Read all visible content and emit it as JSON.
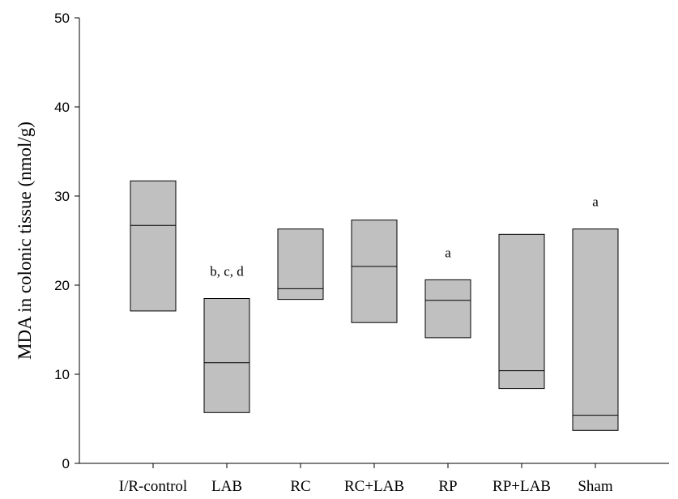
{
  "chart_data": {
    "type": "box",
    "title": "",
    "xlabel": "",
    "ylabel": "MDA in colonic tissue (nmol/g)",
    "ylim": [
      0,
      50
    ],
    "yticks": [
      0,
      10,
      20,
      30,
      40,
      50
    ],
    "grid": false,
    "fill_color": "#c0c0c0",
    "categories": [
      "I/R-control",
      "LAB",
      "RC",
      "RC+LAB",
      "RP",
      "RP+LAB",
      "Sham"
    ],
    "boxes": [
      {
        "category": "I/R-control",
        "q1": 17.1,
        "median": 26.7,
        "q3": 31.7,
        "annotation": ""
      },
      {
        "category": "LAB",
        "q1": 5.7,
        "median": 11.3,
        "q3": 18.5,
        "annotation": "b, c, d"
      },
      {
        "category": "RC",
        "q1": 18.4,
        "median": 19.6,
        "q3": 26.3,
        "annotation": ""
      },
      {
        "category": "RC+LAB",
        "q1": 15.8,
        "median": 22.1,
        "q3": 27.3,
        "annotation": ""
      },
      {
        "category": "RP",
        "q1": 14.1,
        "median": 18.3,
        "q3": 20.6,
        "annotation": "a"
      },
      {
        "category": "RP+LAB",
        "q1": 8.4,
        "median": 10.4,
        "q3": 25.7,
        "annotation": ""
      },
      {
        "category": "Sham",
        "q1": 3.7,
        "median": 5.4,
        "q3": 26.3,
        "annotation": "a"
      }
    ]
  }
}
